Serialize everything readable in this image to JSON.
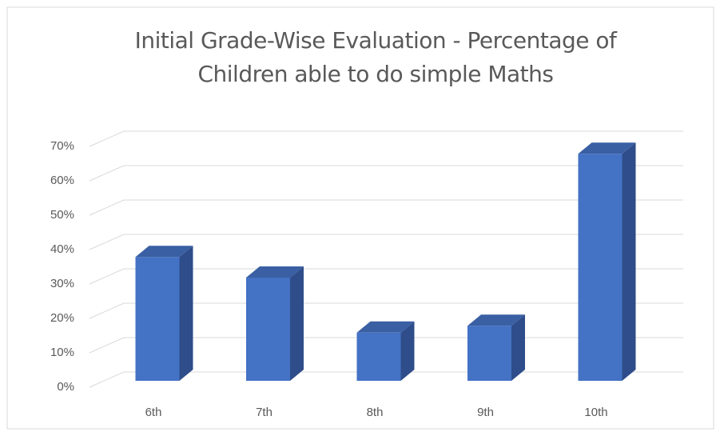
{
  "chart_data": {
    "type": "bar3d",
    "title": "Initial Grade-Wise Evaluation - Percentage of Children able to do simple Maths",
    "categories": [
      "6th",
      "7th",
      "8th",
      "9th",
      "10th"
    ],
    "values": [
      36,
      30,
      14,
      16,
      66
    ],
    "color": "#4472c4",
    "ylim": [
      0,
      70
    ],
    "yticks": [
      {
        "value": 0,
        "label": "0%"
      },
      {
        "value": 10,
        "label": "10%"
      },
      {
        "value": 20,
        "label": "20%"
      },
      {
        "value": 30,
        "label": "30%"
      },
      {
        "value": 40,
        "label": "40%"
      },
      {
        "value": 50,
        "label": "50%"
      },
      {
        "value": 60,
        "label": "60%"
      },
      {
        "value": 70,
        "label": "70%"
      }
    ],
    "grid": true
  }
}
